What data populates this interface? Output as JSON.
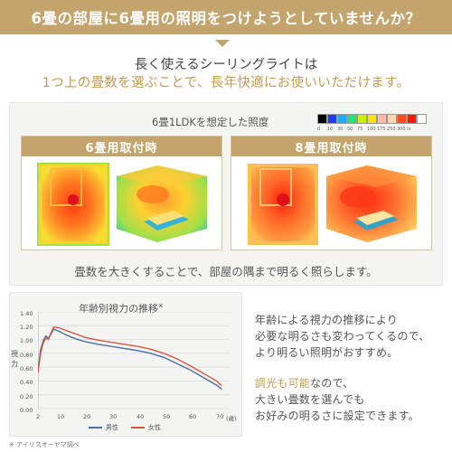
{
  "header": {
    "title": "6畳の部屋に6畳用の照明をつけようとしていませんか？"
  },
  "subtitle": {
    "line1": "長く使えるシーリングライトは",
    "line2": "1つ上の畳数を選ぶことで、長年快適にお使いいただけます。"
  },
  "illuminance": {
    "title": "6畳1LDKを想定した照度",
    "legend_colors": [
      "#000000",
      "#1a3cff",
      "#17b0ff",
      "#22e07a",
      "#c8f000",
      "#ffe400",
      "#ffb9a8",
      "#ffd2b0",
      "#ff4a1a",
      "#ff1800",
      "#ffffff"
    ],
    "legend_labels": [
      "0",
      "10",
      "30",
      "50",
      "75",
      "100",
      "175",
      "250",
      "300",
      "lx"
    ],
    "panel_left": {
      "label": "6畳用取付時"
    },
    "panel_right": {
      "label": "8畳用取付時"
    },
    "note": "畳数を大きくすることで、部屋の隅まで明るく照らします。"
  },
  "chart_data": {
    "type": "line",
    "title": "年齢別視力の推移",
    "title_mark": "※",
    "ylabel": "視力",
    "xlabel": "(歳)",
    "x_ticks": [
      "2",
      "10",
      "20",
      "30",
      "40",
      "50",
      "60",
      "70"
    ],
    "y_ticks": [
      "0.00",
      "0.20",
      "0.40",
      "0.60",
      "0.80",
      "1.00",
      "1.20",
      "1.40"
    ],
    "xlim": [
      2,
      75
    ],
    "ylim": [
      0,
      1.4
    ],
    "series": [
      {
        "name": "男性",
        "color": "#4a6fa5",
        "x": [
          2,
          3,
          4,
          5,
          6,
          7,
          8,
          10,
          12,
          15,
          18,
          20,
          25,
          30,
          35,
          40,
          45,
          50,
          55,
          60,
          65,
          70,
          72
        ],
        "y": [
          0.55,
          0.85,
          0.98,
          1.05,
          1.02,
          1.08,
          1.15,
          1.12,
          1.08,
          1.03,
          0.99,
          0.97,
          0.93,
          0.9,
          0.87,
          0.84,
          0.8,
          0.74,
          0.65,
          0.56,
          0.45,
          0.34,
          0.28
        ]
      },
      {
        "name": "女性",
        "color": "#d9573b",
        "x": [
          2,
          3,
          4,
          5,
          6,
          7,
          8,
          10,
          12,
          15,
          18,
          20,
          25,
          30,
          35,
          40,
          45,
          50,
          55,
          60,
          65,
          70,
          72
        ],
        "y": [
          0.52,
          0.8,
          0.95,
          1.02,
          1.0,
          1.1,
          1.18,
          1.17,
          1.14,
          1.1,
          1.06,
          1.03,
          0.99,
          0.96,
          0.93,
          0.9,
          0.86,
          0.8,
          0.72,
          0.62,
          0.51,
          0.4,
          0.33
        ]
      }
    ]
  },
  "footnote": "※ アイリスオーヤマ調べ",
  "right_text": {
    "line1": "年齢による視力の推移により",
    "line2": "必要な明るさも変わってくるので、",
    "line3": "より明るい照明がおすすめ。",
    "line4a": "調光も可能",
    "line4b": "なので、",
    "line5": "大きい畳数を選んでも",
    "line6": "お好みの明るさに設定できます。"
  }
}
